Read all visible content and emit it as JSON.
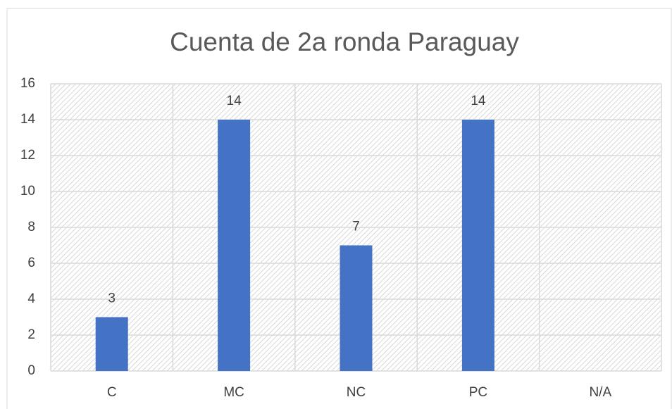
{
  "chart_data": {
    "type": "bar",
    "title": "Cuenta de 2a ronda Paraguay",
    "categories": [
      "C",
      "MC",
      "NC",
      "PC",
      "N/A"
    ],
    "values": [
      3,
      14,
      7,
      14,
      null
    ],
    "color": "#4472c4",
    "ylim": [
      0,
      16
    ],
    "yticks": [
      0,
      2,
      4,
      6,
      8,
      10,
      12,
      14,
      16
    ],
    "grid": true
  }
}
